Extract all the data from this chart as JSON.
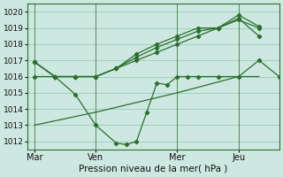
{
  "title": "Pression niveau de la mer( hPa )",
  "background_color": "#cce8e0",
  "grid_color": "#99ccbb",
  "line_color": "#2d6e2d",
  "ylim": [
    1011.5,
    1020.5
  ],
  "yticks": [
    1012,
    1013,
    1014,
    1015,
    1016,
    1017,
    1018,
    1019,
    1020
  ],
  "xtick_labels": [
    "Mar",
    "Ven",
    "Mer",
    "Jeu"
  ],
  "xtick_positions": [
    0,
    36,
    84,
    120
  ],
  "xlim": [
    -4,
    144
  ],
  "vline_positions": [
    0,
    36,
    84,
    120
  ],
  "series_jagged_x": [
    0,
    12,
    24,
    36,
    48,
    54,
    60,
    66,
    72,
    78,
    84,
    90,
    96,
    108,
    120,
    132,
    144
  ],
  "series_jagged_y": [
    1016.0,
    1016.0,
    1014.9,
    1013.0,
    1011.9,
    1011.8,
    1012.0,
    1013.8,
    1015.6,
    1015.5,
    1016.0,
    1016.0,
    1016.0,
    1016.0,
    1016.0,
    1017.0,
    1016.0
  ],
  "series_upper1_x": [
    0,
    12,
    24,
    36,
    48,
    60,
    72,
    84,
    96,
    108,
    120,
    132
  ],
  "series_upper1_y": [
    1016.9,
    1016.0,
    1016.0,
    1016.0,
    1016.5,
    1017.0,
    1017.5,
    1018.0,
    1018.5,
    1019.0,
    1019.5,
    1019.0
  ],
  "series_upper2_x": [
    0,
    12,
    24,
    36,
    48,
    60,
    72,
    84,
    96,
    108,
    120,
    132
  ],
  "series_upper2_y": [
    1016.9,
    1016.0,
    1016.0,
    1016.0,
    1016.5,
    1017.2,
    1017.8,
    1018.3,
    1018.8,
    1019.0,
    1019.8,
    1019.1
  ],
  "series_upper3_x": [
    0,
    12,
    24,
    36,
    48,
    60,
    72,
    84,
    96,
    108,
    120,
    132
  ],
  "series_upper3_y": [
    1016.9,
    1016.0,
    1016.0,
    1016.0,
    1016.5,
    1017.4,
    1018.0,
    1018.5,
    1019.0,
    1019.0,
    1019.6,
    1018.5
  ],
  "series_diag_x": [
    0,
    36,
    84,
    120,
    132
  ],
  "series_diag_y": [
    1013.0,
    1013.8,
    1015.0,
    1016.0,
    1016.0
  ]
}
